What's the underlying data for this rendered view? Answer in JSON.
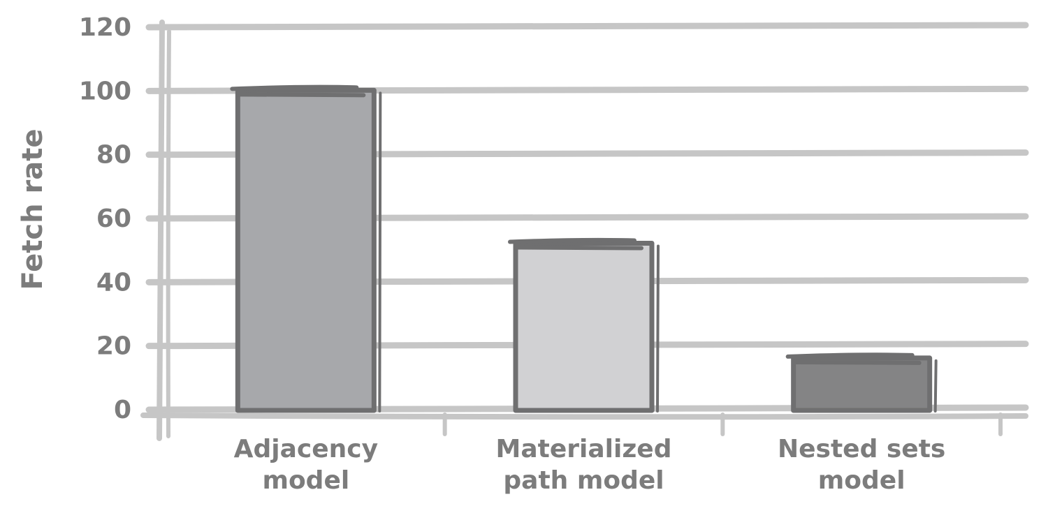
{
  "chart_data": {
    "type": "bar",
    "categories": [
      [
        "Adjacency",
        "model"
      ],
      [
        "Materialized",
        "path model"
      ],
      [
        "Nested sets",
        "model"
      ]
    ],
    "values": [
      100,
      52,
      16
    ],
    "ylabel": "Fetch rate",
    "xlabel": "",
    "ylim": [
      0,
      120
    ],
    "yticks": [
      0,
      20,
      40,
      60,
      80,
      100,
      120
    ],
    "grid": true,
    "bar_fill_colors": [
      "#a7a8ab",
      "#d1d1d3",
      "#848485"
    ],
    "bar_edge_color": "#6f6f70",
    "grid_color": "#c6c6c6",
    "label_color": "#7c7c7c"
  }
}
